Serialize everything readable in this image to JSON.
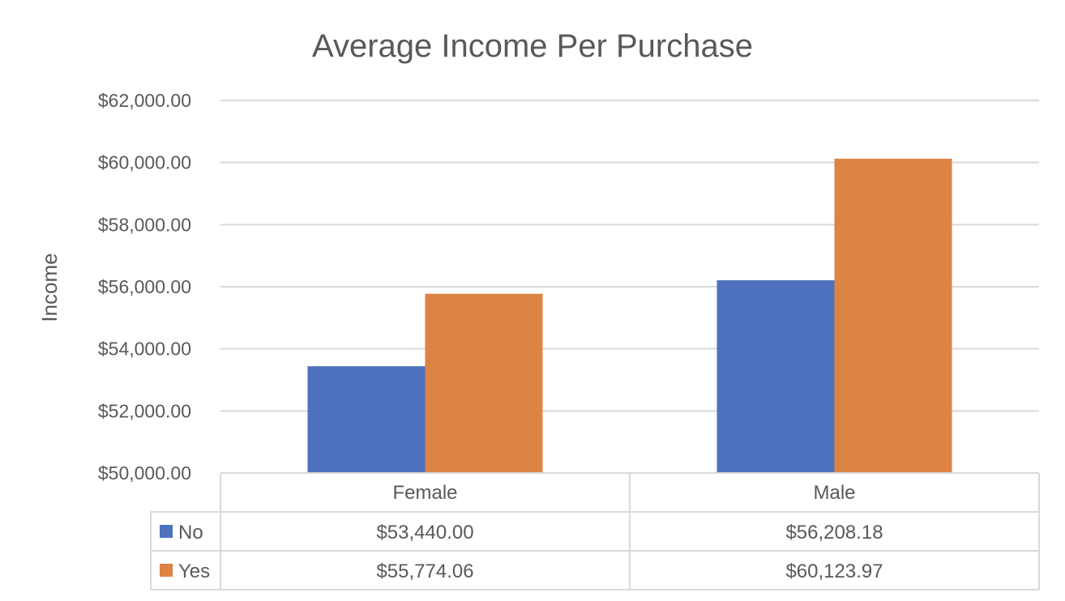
{
  "chart_data": {
    "type": "bar",
    "title": "Average Income Per Purchase",
    "ylabel": "Income",
    "xlabel": "",
    "categories": [
      "Female",
      "Male"
    ],
    "series": [
      {
        "name": "No",
        "values": [
          53440.0,
          56208.18
        ],
        "labels": [
          "$53,440.00",
          "$56,208.18"
        ],
        "color": "#4F72BE"
      },
      {
        "name": "Yes",
        "values": [
          55774.06,
          60123.97
        ],
        "labels": [
          "$55,774.06",
          "$60,123.97"
        ],
        "color": "#DD8344"
      }
    ],
    "ylim": [
      50000,
      62000
    ],
    "yticks": [
      50000,
      52000,
      54000,
      56000,
      58000,
      60000,
      62000
    ],
    "ytick_labels": [
      "$50,000.00",
      "$52,000.00",
      "$54,000.00",
      "$56,000.00",
      "$58,000.00",
      "$60,000.00",
      "$62,000.00"
    ],
    "grid": true,
    "legend": "data-table",
    "gridline_color": "#D9D9D9"
  }
}
